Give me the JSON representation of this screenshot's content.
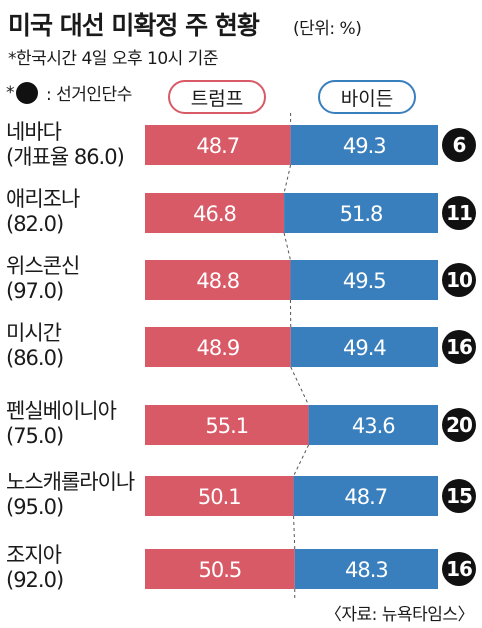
{
  "header": {
    "title": "미국 대선 미확정 주 현황",
    "unit": "(단위: %)",
    "note": "*한국시간 4일 오후 10시 기준",
    "legend_note_prefix": "*",
    "legend_note_text": ": 선거인단수"
  },
  "legend": {
    "trump": "트럼프",
    "biden": "바이든"
  },
  "colors": {
    "trump": "#d85a67",
    "biden": "#3a7fbd",
    "elector_circle": "#111111"
  },
  "source": "〈자료: 뉴욕타임스〉",
  "chart_data": {
    "type": "bar",
    "orientation": "horizontal-stacked",
    "categories": [
      "네바다",
      "애리조나",
      "위스콘신",
      "미시간",
      "펜실베이니아",
      "노스캐롤라이나",
      "조지아"
    ],
    "category_notes": [
      "(개표율 86.0)",
      "(82.0)",
      "(97.0)",
      "(86.0)",
      "(75.0)",
      "(95.0)",
      "(92.0)"
    ],
    "series": [
      {
        "name": "트럼프",
        "values": [
          48.7,
          46.8,
          48.8,
          48.9,
          55.1,
          50.1,
          50.5
        ]
      },
      {
        "name": "바이든",
        "values": [
          49.3,
          51.8,
          49.5,
          49.4,
          43.6,
          48.7,
          48.3
        ]
      }
    ],
    "value_labels": {
      "trump": [
        "48.7",
        "46.8",
        "48.8",
        "48.9",
        "55.1",
        "50.1",
        "50.5"
      ],
      "biden": [
        "49.3",
        "51.8",
        "49.5",
        "49.4",
        "43.6",
        "48.7",
        "48.3"
      ]
    },
    "electoral_votes": [
      6,
      11,
      10,
      16,
      20,
      15,
      16
    ],
    "ylim": [
      0,
      100
    ]
  }
}
